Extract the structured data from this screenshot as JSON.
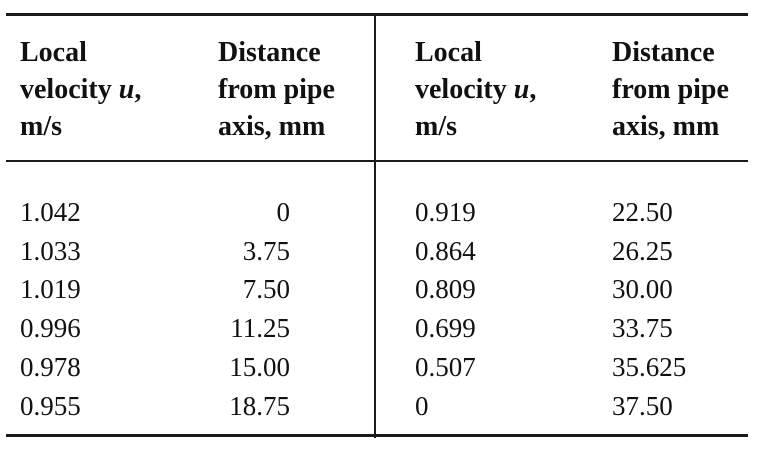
{
  "table": {
    "headers": [
      {
        "line1": "Local",
        "line2_pre": "velocity ",
        "line2_var": "u",
        "line2_post": ",",
        "line3": "m/s"
      },
      {
        "line1": "Distance",
        "line2": "from pipe",
        "line3": "axis, mm"
      },
      {
        "line1": "Local",
        "line2_pre": "velocity ",
        "line2_var": "u",
        "line2_post": ",",
        "line3": "m/s"
      },
      {
        "line1": "Distance",
        "line2": "from pipe",
        "line3": "axis, mm"
      }
    ],
    "rows": [
      [
        "1.042",
        "0",
        "0.919",
        "22.50"
      ],
      [
        "1.033",
        "3.75",
        "0.864",
        "26.25"
      ],
      [
        "1.019",
        "7.50",
        "0.809",
        "30.00"
      ],
      [
        "0.996",
        "11.25",
        "0.699",
        "33.75"
      ],
      [
        "0.978",
        "15.00",
        "0.507",
        "35.625"
      ],
      [
        "0.955",
        "18.75",
        "0",
        "37.50"
      ]
    ]
  }
}
